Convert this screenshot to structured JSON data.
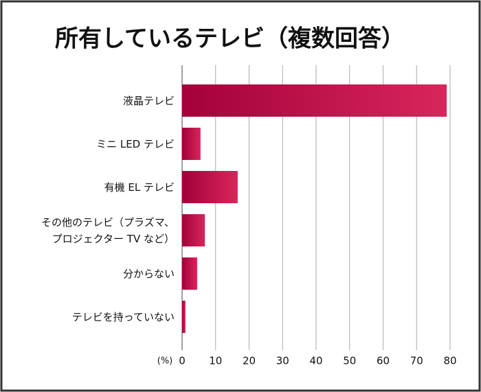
{
  "chart_data": {
    "type": "bar",
    "orientation": "horizontal",
    "title": "所有しているテレビ（複数回答）",
    "x_label": "(%)",
    "categories": [
      "液晶テレビ",
      "ミニ LED テレビ",
      "有機 EL テレビ",
      "その他のテレビ（プラズマ、\nプロジェクター TV など）",
      "分からない",
      "テレビを持っていない"
    ],
    "values": [
      79,
      5.5,
      16.6,
      6.8,
      4.5,
      1
    ],
    "gradient": [
      "#a3003a",
      "#d8265c"
    ],
    "xlim": [
      0,
      80
    ],
    "xticks": [
      0,
      10,
      20,
      30,
      40,
      50,
      60,
      70,
      80
    ],
    "grid": true
  }
}
